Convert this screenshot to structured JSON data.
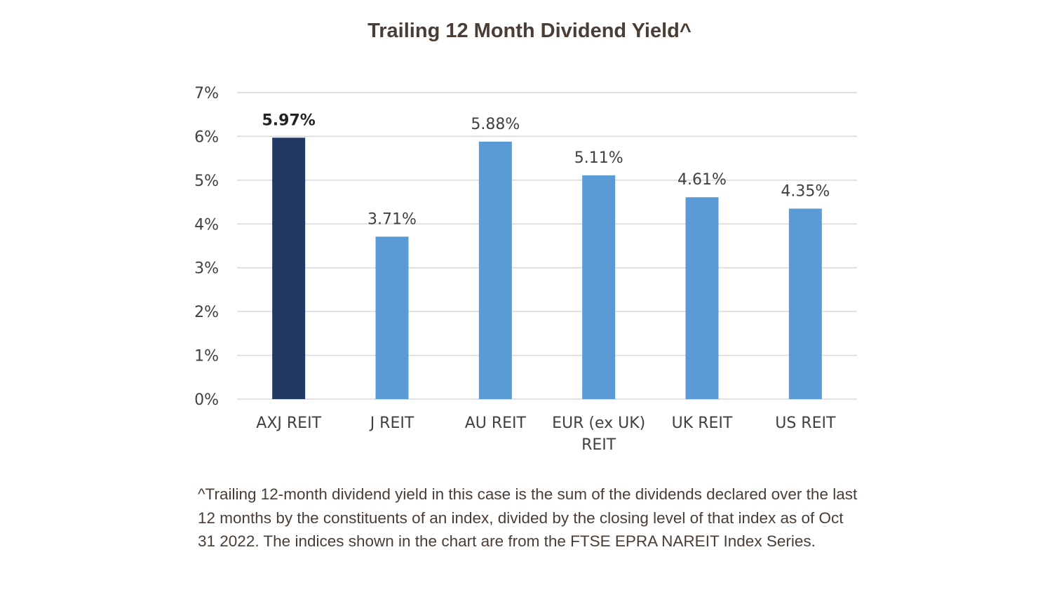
{
  "chart_data": {
    "type": "bar",
    "title": "Trailing 12 Month Dividend Yield^",
    "categories": [
      [
        "AXJ REIT"
      ],
      [
        "J REIT"
      ],
      [
        "AU REIT"
      ],
      [
        "EUR (ex UK)",
        "REIT"
      ],
      [
        "UK REIT"
      ],
      [
        "US REIT"
      ]
    ],
    "values": [
      5.97,
      3.71,
      5.88,
      5.11,
      4.61,
      4.35
    ],
    "data_labels": [
      "5.97%",
      "3.71%",
      "5.88%",
      "5.11%",
      "4.61%",
      "4.35%"
    ],
    "highlight_index": 0,
    "ylim": [
      0,
      7
    ],
    "y_ticks": [
      "0%",
      "1%",
      "2%",
      "3%",
      "4%",
      "5%",
      "6%",
      "7%"
    ],
    "grid": true,
    "xlabel": "",
    "ylabel": "",
    "colors": {
      "highlight": "#213963",
      "bar": "#5b9bd5",
      "grid": "#d9d9d9",
      "tick_text": "#404040",
      "title_text": "#4a3d34"
    }
  },
  "footnote": "^Trailing 12-month dividend yield in this case is the sum of the dividends declared over the last 12 months by the constituents of an index, divided by the closing level of that index as of Oct 31 2022. The indices shown in the chart are from the FTSE EPRA NAREIT Index Series."
}
